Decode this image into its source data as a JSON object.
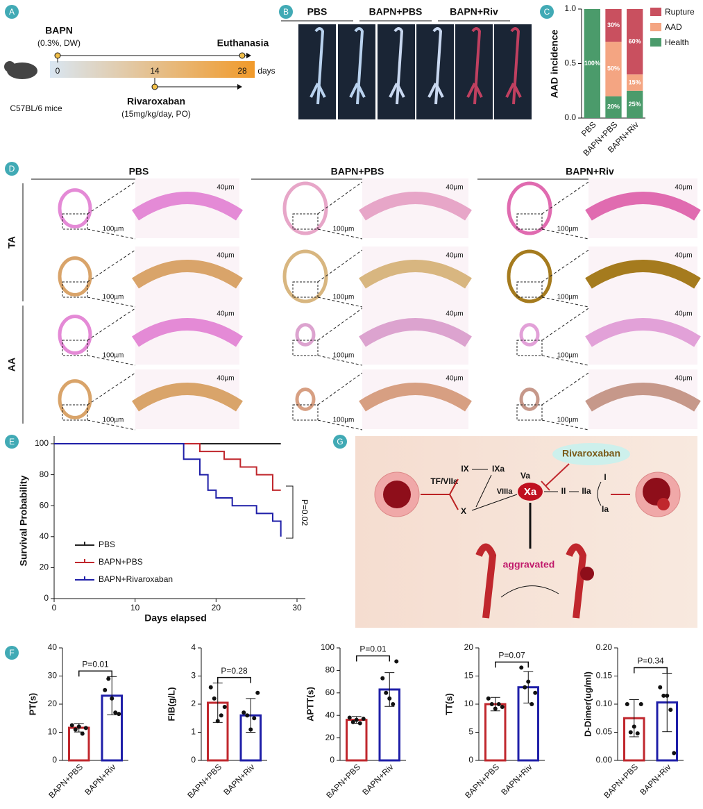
{
  "panel_labels": [
    "A",
    "B",
    "C",
    "D",
    "E",
    "F",
    "G"
  ],
  "panel_a": {
    "drug1": "BAPN",
    "drug1_dose": "(0.3%, DW)",
    "endpoint": "Euthanasia",
    "mice": "C57BL/6 mice",
    "timeline_ticks": [
      0,
      14,
      28
    ],
    "unit": "days",
    "drug2": "Rivaroxaban",
    "drug2_dose": "(15mg/kg/day, PO)"
  },
  "panel_b": {
    "groups": [
      "PBS",
      "BAPN+PBS",
      "BAPN+Riv"
    ]
  },
  "panel_d": {
    "groups": [
      "PBS",
      "BAPN+PBS",
      "BAPN+Riv"
    ],
    "rows": [
      "TA",
      "AA"
    ],
    "scale_low": "100µm",
    "scale_high": "40µm"
  },
  "panel_g": {
    "tf": "TF/VIIa",
    "ix": "IX",
    "ixa": "IXa",
    "viiia": "VIIIa",
    "x": "X",
    "va": "Va",
    "xa": "Xa",
    "ii": "II",
    "iia": "IIa",
    "i": "I",
    "ia": "Ia",
    "drug": "Rivaroxaban",
    "effect": "aggravated"
  },
  "chart_data": [
    {
      "type": "stacked-bar",
      "ylabel": "AAD incidence",
      "categories": [
        "PBS",
        "BAPN+PBS",
        "BAPN+Riv"
      ],
      "series": [
        {
          "name": "Rupture",
          "color": "#c9505f",
          "values": [
            0,
            0.3,
            0.6
          ],
          "value_labels": [
            null,
            "30%",
            "60%"
          ]
        },
        {
          "name": "AAD",
          "color": "#f4a582",
          "values": [
            0,
            0.5,
            0.15
          ],
          "value_labels": [
            null,
            "50%",
            "15%"
          ]
        },
        {
          "name": "Health",
          "color": "#4b9b6b",
          "values": [
            1,
            0.2,
            0.25
          ],
          "value_labels": [
            "100%",
            "20%",
            "25%"
          ]
        }
      ],
      "ylim": [
        0,
        1
      ],
      "yticks": [
        {
          "value": 0,
          "label": "0.0"
        },
        0.5,
        {
          "value": 1,
          "label": "1.0"
        }
      ],
      "legend": "right"
    },
    {
      "type": "step-line",
      "xlabel": "Days elapsed",
      "ylabel": "Survival Probability",
      "annotation": "P=0.02",
      "series": [
        {
          "name": "PBS",
          "color": "#222222",
          "x": [
            0,
            28
          ],
          "values": [
            100,
            100
          ]
        },
        {
          "name": "BAPN+PBS",
          "color": "#c0272d",
          "x": [
            0,
            18,
            21,
            23,
            25,
            27,
            28
          ],
          "values": [
            100,
            95,
            90,
            85,
            80,
            70,
            70
          ]
        },
        {
          "name": "BAPN+Rivaroxaban",
          "color": "#1f1fa8",
          "x": [
            0,
            16,
            18,
            19,
            20,
            22,
            25,
            27,
            28
          ],
          "values": [
            100,
            90,
            80,
            70,
            65,
            60,
            55,
            50,
            40
          ]
        }
      ],
      "xlim": [
        0,
        30
      ],
      "xticks": [
        0,
        10,
        20,
        30
      ],
      "ylim": [
        0,
        100
      ],
      "yticks": [
        0,
        20,
        40,
        60,
        80,
        100
      ],
      "legend": "lower left"
    },
    {
      "type": "bar-error",
      "ylabel": "PT(s)",
      "annotation": "P=0.01",
      "categories": [
        "BAPN+PBS",
        "BAPN+Riv"
      ],
      "colors": [
        "#c0272d",
        "#1f1fa8"
      ],
      "values": [
        11.6,
        23
      ],
      "errors": [
        1.5,
        6.8
      ],
      "points": [
        [
          12.5,
          11,
          12,
          9.5,
          11.5
        ],
        [
          25,
          29,
          22,
          17,
          16.5
        ]
      ],
      "ylim": [
        0,
        40
      ],
      "yticks": [
        0,
        10,
        20,
        30,
        40
      ]
    },
    {
      "type": "bar-error",
      "ylabel": "FIB(g/L)",
      "annotation": "P=0.28",
      "categories": [
        "BAPN+PBS",
        "BAPN+Riv"
      ],
      "colors": [
        "#c0272d",
        "#1f1fa8"
      ],
      "values": [
        2.05,
        1.6
      ],
      "errors": [
        0.7,
        0.6
      ],
      "points": [
        [
          2.6,
          2.2,
          1.4,
          1.6,
          1.9
        ],
        [
          1.7,
          1.6,
          1.1,
          1.5,
          2.4
        ]
      ],
      "ylim": [
        0,
        4
      ],
      "yticks": [
        0,
        1,
        2,
        3,
        4
      ]
    },
    {
      "type": "bar-error",
      "ylabel": "APTT(s)",
      "annotation": "P=0.01",
      "categories": [
        "BAPN+PBS",
        "BAPN+Riv"
      ],
      "colors": [
        "#c0272d",
        "#1f1fa8"
      ],
      "values": [
        36,
        63
      ],
      "errors": [
        3,
        15
      ],
      "points": [
        [
          38,
          34,
          36,
          33,
          37
        ],
        [
          73,
          60,
          55,
          50,
          88
        ]
      ],
      "ylim": [
        0,
        100
      ],
      "yticks": [
        0,
        20,
        40,
        60,
        80,
        100
      ]
    },
    {
      "type": "bar-error",
      "ylabel": "TT(s)",
      "annotation": "P=0.07",
      "categories": [
        "BAPN+PBS",
        "BAPN+Riv"
      ],
      "colors": [
        "#c0272d",
        "#1f1fa8"
      ],
      "values": [
        10,
        13
      ],
      "errors": [
        1.2,
        2.8
      ],
      "points": [
        [
          11,
          10,
          9.2,
          10,
          9.5
        ],
        [
          16.5,
          13,
          14,
          10,
          12
        ]
      ],
      "ylim": [
        0,
        20
      ],
      "yticks": [
        0,
        5,
        10,
        15,
        20
      ]
    },
    {
      "type": "bar-error",
      "ylabel": "D-Dimer(ug/ml)",
      "annotation": "P=0.34",
      "categories": [
        "BAPN+PBS",
        "BAPN+Riv"
      ],
      "colors": [
        "#c0272d",
        "#1f1fa8"
      ],
      "values": [
        0.075,
        0.103
      ],
      "errors": [
        0.033,
        0.052
      ],
      "points": [
        [
          0.1,
          0.05,
          0.06,
          0.048,
          0.1
        ],
        [
          0.13,
          0.115,
          0.115,
          0.09,
          0.013
        ]
      ],
      "ylim": [
        0,
        0.2
      ],
      "yticks": [
        {
          "value": 0,
          "label": "0.00"
        },
        0.05,
        {
          "value": 0.1,
          "label": "0.10"
        },
        0.15,
        {
          "value": 0.2,
          "label": "0.20"
        }
      ]
    }
  ]
}
